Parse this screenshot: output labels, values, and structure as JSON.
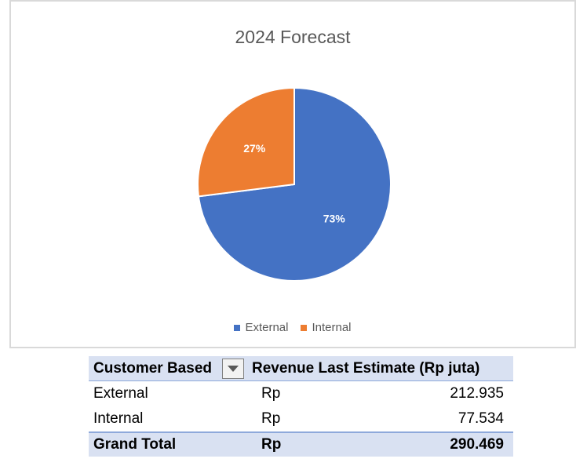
{
  "chart_data": {
    "type": "pie",
    "title": "2024 Forecast",
    "slices": [
      {
        "name": "External",
        "value": 73,
        "label": "73%",
        "color": "#4472c4"
      },
      {
        "name": "Internal",
        "value": 27,
        "label": "27%",
        "color": "#ed7d31"
      }
    ],
    "legend_position": "bottom"
  },
  "table": {
    "headers": {
      "customer": "Customer Based",
      "revenue": "Revenue Last Estimate (Rp juta)"
    },
    "filter_icon": "dropdown-triangle-icon",
    "rows": [
      {
        "customer": "External",
        "currency": "Rp",
        "amount": "212.935"
      },
      {
        "customer": "Internal",
        "currency": "Rp",
        "amount": "77.534"
      }
    ],
    "total": {
      "label": "Grand Total",
      "currency": "Rp",
      "amount": "290.469"
    }
  }
}
